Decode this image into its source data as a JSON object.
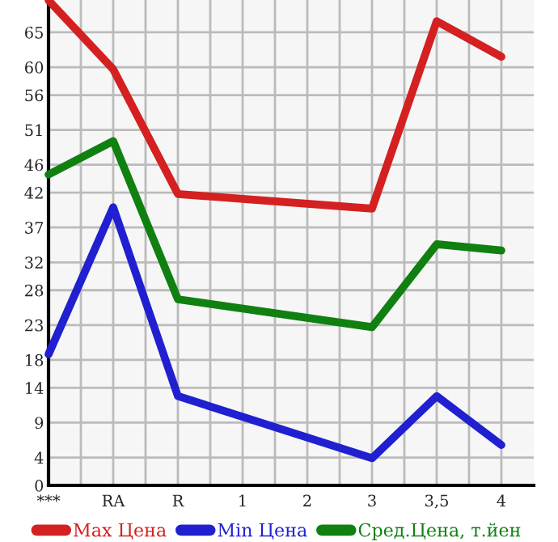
{
  "chart_data": {
    "type": "line",
    "categories": [
      "***",
      "RA",
      "R",
      "1",
      "2",
      "3",
      "3,5",
      "4"
    ],
    "series": [
      {
        "name": "Max Цена",
        "color": "#d42020",
        "values": [
          69.6,
          59.7,
          41.8,
          null,
          null,
          39.7,
          66.6,
          61.5
        ]
      },
      {
        "name": "Min Цена",
        "color": "#2020d0",
        "values": [
          18.8,
          39.9,
          12.8,
          null,
          null,
          3.9,
          12.8,
          5.8
        ]
      },
      {
        "name": "Сред.Цена, т.йен",
        "color": "#108010",
        "values": [
          44.6,
          49.4,
          26.7,
          null,
          null,
          22.7,
          34.6,
          33.7
        ]
      }
    ],
    "ylim": [
      0,
      69.64
    ],
    "yticks": [
      0,
      4,
      9,
      14,
      18,
      23,
      28,
      32,
      37,
      42,
      46,
      51,
      56,
      60,
      65
    ],
    "grid": true,
    "legend": "bottom",
    "marker": "none",
    "line_style": "solid"
  }
}
